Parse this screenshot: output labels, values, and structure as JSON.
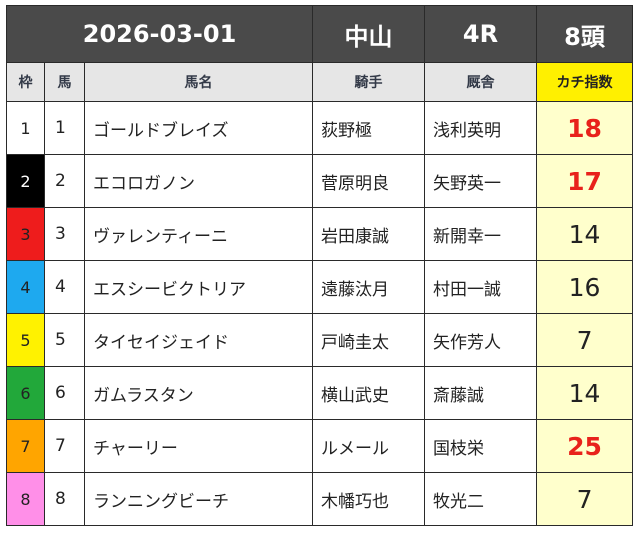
{
  "header": {
    "date": "2026-03-01",
    "venue": "中山",
    "race": "4R",
    "runners": "8頭"
  },
  "columns": {
    "waku": "枠",
    "uma": "馬",
    "horse_name": "馬名",
    "jockey": "騎手",
    "trainer": "厩舎",
    "index": "カチ指数"
  },
  "colors": {
    "header_bg": "#4a4a4a",
    "index_header_bg": "#fff000",
    "index_cell_bg": "#ffffcc",
    "highlight_text": "#e8221b",
    "waku_1": "#ffffff",
    "waku_2": "#000000",
    "waku_3": "#ee1c1c",
    "waku_4": "#1ea9ef",
    "waku_5": "#fff200",
    "waku_6": "#22a83a",
    "waku_7": "#ffa500",
    "waku_8": "#ff8fe8"
  },
  "rows": [
    {
      "waku": "1",
      "uma": "1",
      "name": "ゴールドブレイズ",
      "jockey": "荻野極",
      "trainer": "浅利英明",
      "index": "18",
      "highlight": true
    },
    {
      "waku": "2",
      "uma": "2",
      "name": "エコロガノン",
      "jockey": "菅原明良",
      "trainer": "矢野英一",
      "index": "17",
      "highlight": true
    },
    {
      "waku": "3",
      "uma": "3",
      "name": "ヴァレンティーニ",
      "jockey": "岩田康誠",
      "trainer": "新開幸一",
      "index": "14",
      "highlight": false
    },
    {
      "waku": "4",
      "uma": "4",
      "name": "エスシービクトリア",
      "jockey": "遠藤汰月",
      "trainer": "村田一誠",
      "index": "16",
      "highlight": false
    },
    {
      "waku": "5",
      "uma": "5",
      "name": "タイセイジェイド",
      "jockey": "戸崎圭太",
      "trainer": "矢作芳人",
      "index": "7",
      "highlight": false
    },
    {
      "waku": "6",
      "uma": "6",
      "name": "ガムラスタン",
      "jockey": "横山武史",
      "trainer": "斎藤誠",
      "index": "14",
      "highlight": false
    },
    {
      "waku": "7",
      "uma": "7",
      "name": "チャーリー",
      "jockey": "ルメール",
      "trainer": "国枝栄",
      "index": "25",
      "highlight": true
    },
    {
      "waku": "8",
      "uma": "8",
      "name": "ランニングビーチ",
      "jockey": "木幡巧也",
      "trainer": "牧光二",
      "index": "7",
      "highlight": false
    }
  ]
}
